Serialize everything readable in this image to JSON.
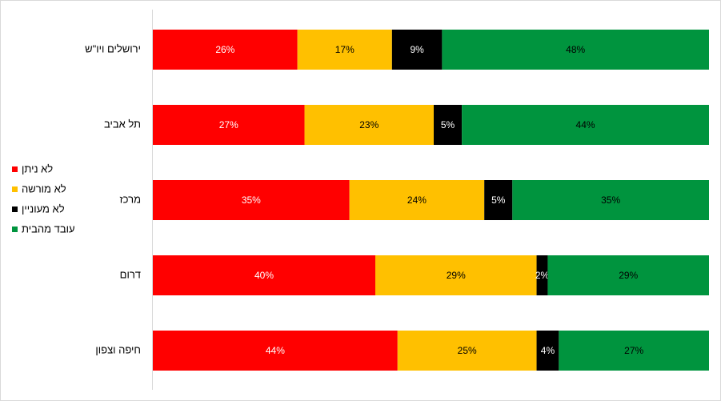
{
  "chart_data": {
    "type": "bar",
    "orientation": "horizontal",
    "stacking": "percent",
    "legend": "left",
    "categories": [
      "ירושלים ויו\"ש",
      "תל אביב",
      "מרכז",
      "דרום",
      "חיפה וצפון"
    ],
    "series": [
      {
        "name": "לא ניתן",
        "color": "#ff0000",
        "values": [
          26,
          27,
          35,
          40,
          44
        ],
        "value_labels": [
          "26%",
          "27%",
          "35%",
          "40%",
          "44%"
        ]
      },
      {
        "name": "לא מורשה",
        "color": "#ffc000",
        "values": [
          17,
          23,
          24,
          29,
          25
        ],
        "value_labels": [
          "17%",
          "23%",
          "24%",
          "29%",
          "25%"
        ]
      },
      {
        "name": "לא מעוניין",
        "color": "#000000",
        "values": [
          9,
          5,
          5,
          2,
          4
        ],
        "value_labels": [
          "9%",
          "5%",
          "5%",
          "2%",
          "4%"
        ]
      },
      {
        "name": "עובד מהבית",
        "color": "#00943e",
        "values": [
          48,
          44,
          35,
          29,
          27
        ],
        "value_labels": [
          "48%",
          "44%",
          "35%",
          "29%",
          "27%"
        ]
      }
    ]
  }
}
